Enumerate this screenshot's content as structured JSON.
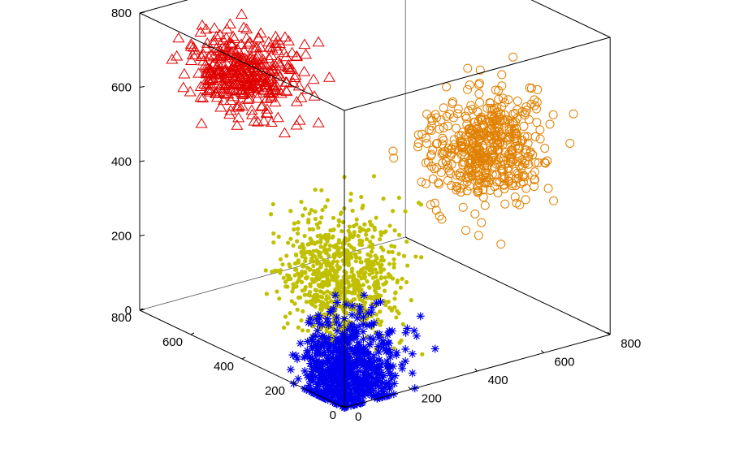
{
  "chart_data": {
    "type": "scatter",
    "dimensions": 3,
    "axes": {
      "x": {
        "ticks": [
          "0",
          "200",
          "400",
          "600",
          "800"
        ],
        "range": [
          0,
          800
        ]
      },
      "y": {
        "ticks": [
          "0",
          "200",
          "400",
          "600",
          "800"
        ],
        "range": [
          0,
          800
        ]
      },
      "z": {
        "ticks": [
          "0",
          "200",
          "400",
          "600",
          "800"
        ],
        "range": [
          0,
          800
        ]
      }
    },
    "grid": false,
    "box": true,
    "legend": "none",
    "series": [
      {
        "marker": "asterisk",
        "color": "#0000ee",
        "center": [
          50,
          60,
          60
        ],
        "spread": [
          70,
          60,
          70
        ],
        "point_count": 700,
        "values": [
          [
            30,
            40,
            20
          ],
          [
            80,
            30,
            90
          ],
          [
            120,
            60,
            40
          ],
          [
            20,
            120,
            60
          ],
          [
            150,
            20,
            130
          ],
          [
            60,
            90,
            110
          ]
        ]
      },
      {
        "marker": "dot",
        "color": "#c0c000",
        "center": [
          40,
          80,
          300
        ],
        "spread": [
          80,
          80,
          90
        ],
        "point_count": 900,
        "values": [
          [
            20,
            60,
            260
          ],
          [
            90,
            40,
            340
          ],
          [
            60,
            120,
            300
          ],
          [
            120,
            80,
            250
          ],
          [
            10,
            300,
            420
          ],
          [
            140,
            30,
            380
          ]
        ]
      },
      {
        "marker": "triangle",
        "color": "#e00000",
        "center": [
          100,
          520,
          700
        ],
        "spread": [
          60,
          80,
          45
        ],
        "point_count": 380,
        "values": [
          [
            90,
            500,
            720
          ],
          [
            130,
            560,
            680
          ],
          [
            60,
            460,
            700
          ],
          [
            180,
            420,
            640
          ]
        ]
      },
      {
        "marker": "circle",
        "color": "#e08000",
        "center": [
          560,
          180,
          500
        ],
        "spread": [
          80,
          60,
          70
        ],
        "point_count": 500,
        "values": [
          [
            540,
            160,
            520
          ],
          [
            600,
            200,
            480
          ],
          [
            470,
            130,
            450
          ],
          [
            650,
            220,
            540
          ]
        ]
      }
    ]
  }
}
